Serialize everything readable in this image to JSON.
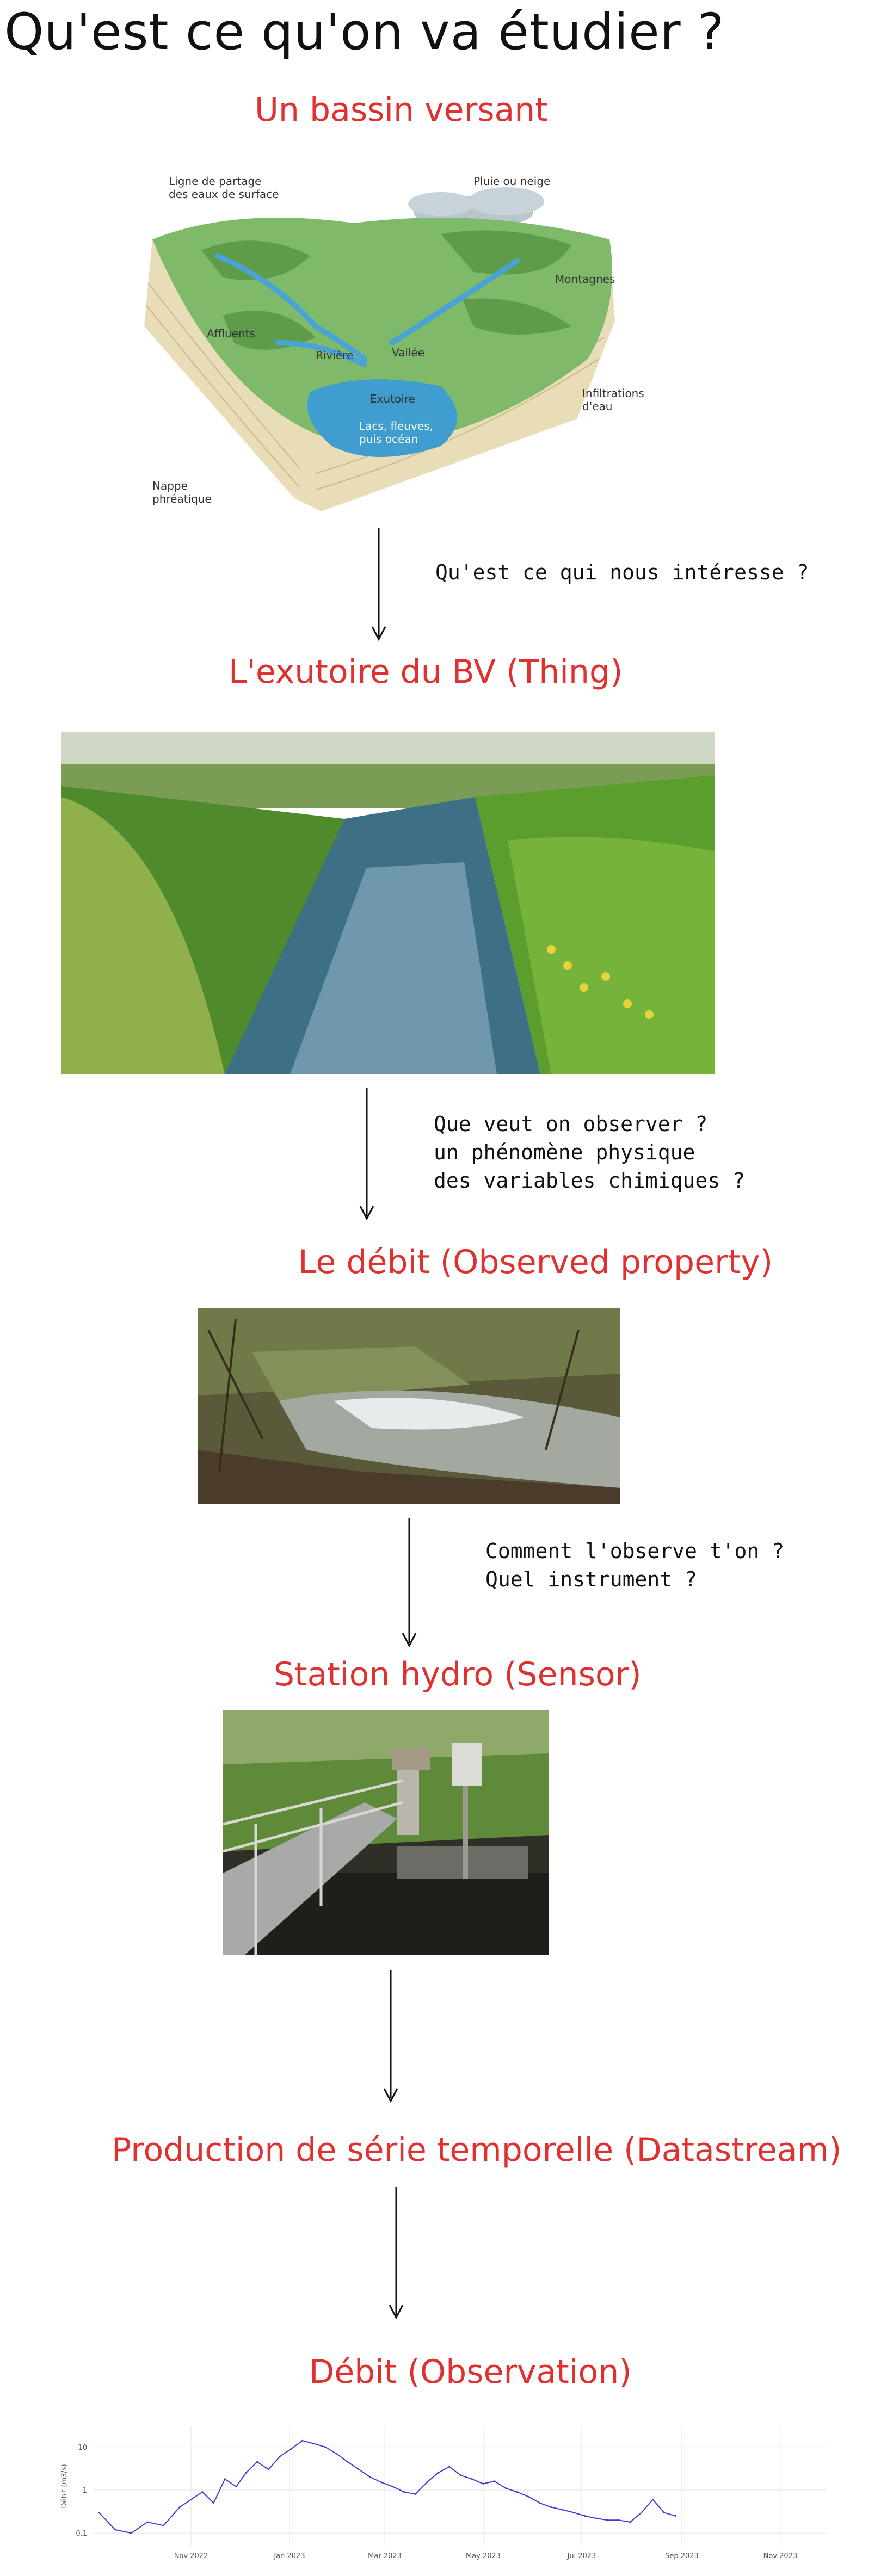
{
  "title": "Qu'est ce qu'on va étudier ?",
  "sections": {
    "bassin": {
      "label": "Un bassin versant",
      "figure": {
        "pluie": "Pluie ou neige",
        "ligne": "Ligne de partage\ndes eaux de surface",
        "montagnes": "Montagnes",
        "affluents": "Affluents",
        "riviere": "Rivière",
        "vallee": "Vallée",
        "exutoire": "Exutoire",
        "lacs": "Lacs, fleuves,\npuis océan",
        "infiltrations": "Infiltrations\nd'eau",
        "nappe": "Nappe\nphréatique"
      }
    },
    "exutoire": {
      "label": "L'exutoire du BV (Thing)"
    },
    "debit": {
      "label": "Le débit (Observed property)"
    },
    "station": {
      "label": "Station hydro (Sensor)"
    },
    "datastream": {
      "label": "Production de série temporelle (Datastream)"
    },
    "observation": {
      "label": "Débit (Observation)"
    }
  },
  "notes": {
    "q1": [
      "Qu'est ce qui nous intéresse ?"
    ],
    "q2": [
      "Que veut on observer ?",
      "un phénomène physique",
      "des variables chimiques ?"
    ],
    "q3": [
      "Comment l'observe t'on ?",
      "Quel instrument ?"
    ]
  },
  "chart_data": {
    "type": "line",
    "title": "",
    "xlabel": "",
    "ylabel": "Débit (m3/s)",
    "y_scale": "log",
    "y_ticks": [
      "0.1",
      "1",
      "10"
    ],
    "x_ticks": [
      "Nov 2022",
      "Jan 2023",
      "Mar 2023",
      "May 2023",
      "Jul 2023",
      "Sep 2023",
      "Nov 2023"
    ],
    "x_range": [
      "2022-09-01",
      "2023-11-30"
    ],
    "grid": true,
    "series": [
      {
        "name": "",
        "color": "#3b3bd9",
        "x": [
          "2022-09-05",
          "2022-09-15",
          "2022-09-25",
          "2022-10-05",
          "2022-10-15",
          "2022-10-25",
          "2022-11-01",
          "2022-11-08",
          "2022-11-15",
          "2022-11-22",
          "2022-11-29",
          "2022-12-05",
          "2022-12-12",
          "2022-12-19",
          "2022-12-26",
          "2023-01-02",
          "2023-01-09",
          "2023-01-16",
          "2023-01-23",
          "2023-01-30",
          "2023-02-06",
          "2023-02-13",
          "2023-02-20",
          "2023-02-27",
          "2023-03-06",
          "2023-03-13",
          "2023-03-20",
          "2023-03-27",
          "2023-04-03",
          "2023-04-10",
          "2023-04-17",
          "2023-04-24",
          "2023-05-01",
          "2023-05-08",
          "2023-05-15",
          "2023-05-22",
          "2023-05-29",
          "2023-06-05",
          "2023-06-12",
          "2023-06-19",
          "2023-06-26",
          "2023-07-03",
          "2023-07-10",
          "2023-07-17",
          "2023-07-24",
          "2023-07-31",
          "2023-08-07",
          "2023-08-14",
          "2023-08-21",
          "2023-08-28"
        ],
        "y": [
          0.3,
          0.12,
          0.1,
          0.18,
          0.15,
          0.4,
          0.6,
          0.9,
          0.5,
          1.8,
          1.2,
          2.5,
          4.5,
          3.0,
          6.0,
          9.0,
          14.0,
          12.0,
          10.0,
          7.0,
          4.5,
          3.0,
          2.0,
          1.5,
          1.2,
          0.9,
          0.8,
          1.5,
          2.5,
          3.5,
          2.2,
          1.8,
          1.4,
          1.6,
          1.1,
          0.9,
          0.7,
          0.5,
          0.4,
          0.35,
          0.3,
          0.25,
          0.22,
          0.2,
          0.2,
          0.18,
          0.3,
          0.6,
          0.3,
          0.25
        ]
      }
    ]
  }
}
